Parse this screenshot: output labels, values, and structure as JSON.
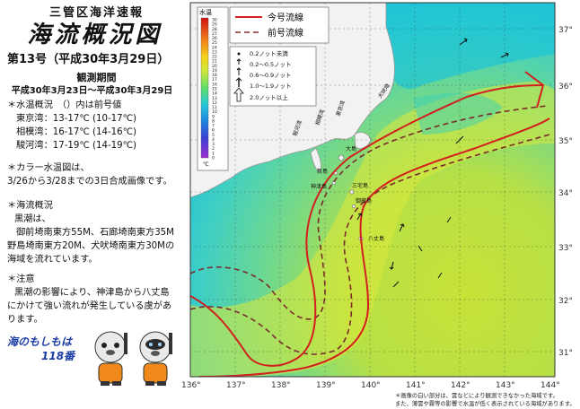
{
  "header": {
    "org": "三管区海洋速報",
    "title": "海流概況図",
    "issue": "第13号（平成30年3月29日）",
    "period_label": "観測期間",
    "period_range": "平成30年3月23日〜平成30年3月29日"
  },
  "water_temp": {
    "heading": "＊水温概況　（）内は前号値",
    "rows": [
      {
        "label": "東京湾",
        "value": "：13-17℃ (10-17℃)"
      },
      {
        "label": "相模湾",
        "value": "：16-17℃ (14-16℃)"
      },
      {
        "label": "駿河湾",
        "value": "：17-19℃ (14-19℃)"
      }
    ]
  },
  "color_map": {
    "heading": "＊カラー水温図は、",
    "text": "3/26から3/28までの3日合成画像です。"
  },
  "current": {
    "heading": "＊海流概況",
    "lines": [
      "黒潮は、",
      "御前埼南東方55M、石廊埼南東方35M",
      "野島埼南東方20M、犬吠埼南東方30Mの",
      "海域を流れています。"
    ]
  },
  "caution": {
    "heading": "＊注意",
    "lines": [
      "黒潮の影響により、神津島から八丈島",
      "にかけて強い流れが発生している虞があ",
      "ります。"
    ]
  },
  "mascot": {
    "line1": "海のもしもは",
    "line2": "118番"
  },
  "map": {
    "colorbar_title": "水温",
    "colorbar_ticks": [
      "30",
      "29",
      "28",
      "27",
      "26",
      "25",
      "24",
      "23",
      "22",
      "21",
      "20",
      "19",
      "18",
      "17",
      "16",
      "15",
      "14",
      "13",
      "12",
      "11",
      "10",
      "9",
      "8",
      "7",
      "6",
      "5",
      "4",
      "3",
      "2",
      "1",
      "0"
    ],
    "colorbar_unit": "℃",
    "legend_current": "今号流線",
    "legend_previous": "前号流線",
    "arrow_legend": [
      "0.2ノット未満",
      "0.2〜0.5ノット",
      "0.6〜0.9ノット",
      "1.0〜1.9ノット",
      "2.0ノット以上"
    ],
    "lon_ticks": [
      "136°",
      "137°",
      "138°",
      "139°",
      "140°",
      "141°",
      "142°",
      "143°",
      "144°"
    ],
    "lat_ticks": [
      "37°",
      "36°",
      "35°",
      "34°",
      "33°",
      "32°",
      "31°"
    ],
    "place_labels": [
      "大島",
      "新島",
      "神津島",
      "三宅島",
      "御蔵島",
      "八丈島",
      "駿河湾",
      "相模湾",
      "東京湾",
      "犬吠埼"
    ],
    "colors": {
      "kuroshio_current": "#d21f1f",
      "kuroshio_previous": "#8a2d2d",
      "land": "#f2f2f2",
      "warm_water": "#d9e83a",
      "cool_water": "#20c7d8"
    }
  },
  "footnote": {
    "line1": "＊画像の白い部分は、雲などにより観測できなかった海域です。",
    "line2": "また、薄雲や霧等の影響で水温が低く表示されている海域があります。"
  }
}
